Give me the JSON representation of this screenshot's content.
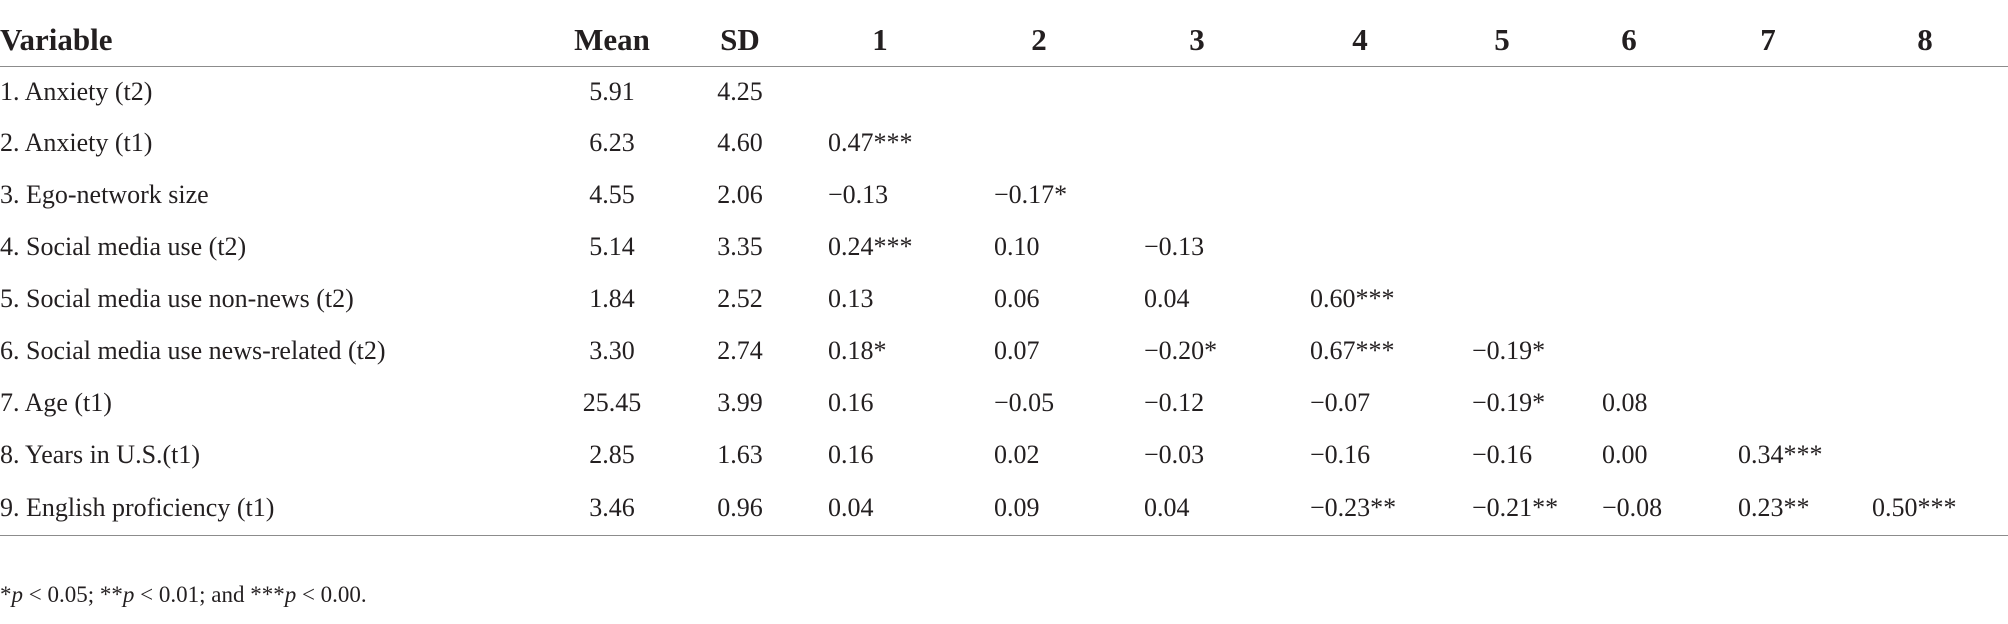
{
  "table": {
    "headers": [
      "Variable",
      "Mean",
      "SD",
      "1",
      "2",
      "3",
      "4",
      "5",
      "6",
      "7",
      "8"
    ],
    "rows": [
      {
        "variable": "1. Anxiety (t2)",
        "mean": "5.91",
        "sd": "4.25",
        "c1": "",
        "c2": "",
        "c3": "",
        "c4": "",
        "c5": "",
        "c6": "",
        "c7": "",
        "c8": ""
      },
      {
        "variable": "2. Anxiety (t1)",
        "mean": "6.23",
        "sd": "4.60",
        "c1": "0.47***",
        "c2": "",
        "c3": "",
        "c4": "",
        "c5": "",
        "c6": "",
        "c7": "",
        "c8": ""
      },
      {
        "variable": "3. Ego-network size",
        "mean": "4.55",
        "sd": "2.06",
        "c1": "−0.13",
        "c2": "−0.17*",
        "c3": "",
        "c4": "",
        "c5": "",
        "c6": "",
        "c7": "",
        "c8": ""
      },
      {
        "variable": "4. Social media use (t2)",
        "mean": "5.14",
        "sd": "3.35",
        "c1": "0.24***",
        "c2": "0.10",
        "c3": "−0.13",
        "c4": "",
        "c5": "",
        "c6": "",
        "c7": "",
        "c8": ""
      },
      {
        "variable": "5. Social media use non-news (t2)",
        "mean": "1.84",
        "sd": "2.52",
        "c1": "0.13",
        "c2": "0.06",
        "c3": "0.04",
        "c4": "0.60***",
        "c5": "",
        "c6": "",
        "c7": "",
        "c8": ""
      },
      {
        "variable": "6. Social media use news-related (t2)",
        "mean": "3.30",
        "sd": "2.74",
        "c1": "0.18*",
        "c2": "0.07",
        "c3": "−0.20*",
        "c4": "0.67***",
        "c5": "−0.19*",
        "c6": "",
        "c7": "",
        "c8": ""
      },
      {
        "variable": "7. Age (t1)",
        "mean": "25.45",
        "sd": "3.99",
        "c1": "0.16",
        "c2": "−0.05",
        "c3": "−0.12",
        "c4": "−0.07",
        "c5": "−0.19*",
        "c6": "0.08",
        "c7": "",
        "c8": ""
      },
      {
        "variable": "8. Years in U.S.(t1)",
        "mean": "2.85",
        "sd": "1.63",
        "c1": "0.16",
        "c2": "0.02",
        "c3": "−0.03",
        "c4": "−0.16",
        "c5": "−0.16",
        "c6": "0.00",
        "c7": "0.34***",
        "c8": ""
      },
      {
        "variable": "9. English proficiency (t1)",
        "mean": "3.46",
        "sd": "0.96",
        "c1": "0.04",
        "c2": "0.09",
        "c3": "0.04",
        "c4": "−0.23**",
        "c5": "−0.21**",
        "c6": "−0.08",
        "c7": "0.23**",
        "c8": "0.50***"
      }
    ]
  },
  "footnote": {
    "p1_star": "*",
    "p1_tail": " < 0.05; ",
    "p2_star": "**",
    "p2_tail": " < 0.01; and ",
    "p3_star": "***",
    "p3_tail": " < 0.00.",
    "p_symbol": "p"
  }
}
